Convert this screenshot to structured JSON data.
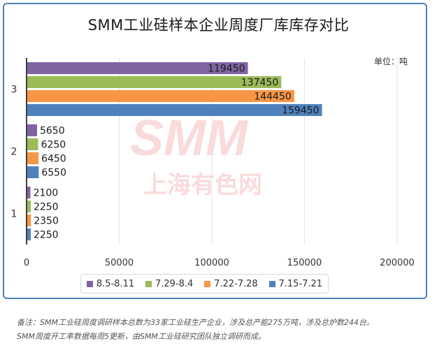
{
  "chart_data": {
    "type": "bar",
    "orientation": "horizontal",
    "title": "SMM工业硅样本企业周度厂库库存对比",
    "unit_label": "单位：吨",
    "watermark": {
      "line1": "SMM",
      "line2": "上海有色网"
    },
    "categories": [
      "1",
      "2",
      "3"
    ],
    "series": [
      {
        "name": "8.5-8.11",
        "color": "#8064a2",
        "values": [
          2100,
          5650,
          119450
        ]
      },
      {
        "name": "7.29-8.4",
        "color": "#9bbb59",
        "values": [
          2250,
          6250,
          137450
        ]
      },
      {
        "name": "7.22-7.28",
        "color": "#f79646",
        "values": [
          2350,
          6450,
          144450
        ]
      },
      {
        "name": "7.15-7.21",
        "color": "#4f81bd",
        "values": [
          2250,
          6550,
          159450
        ]
      }
    ],
    "xlim": [
      0,
      200000
    ],
    "xticks": [
      "0",
      "50000",
      "100000",
      "150000",
      "200000"
    ],
    "grid": true,
    "legend_position": "bottom"
  },
  "footnote": {
    "line1": "备注：SMM工业硅周度调研样本总数为33家工业硅生产企业，涉及总产能275万吨，涉及总炉数244台。",
    "line2": "SMM周度开工率数据每周5更新，由SMM工业硅研究团队独立调研而成。"
  }
}
